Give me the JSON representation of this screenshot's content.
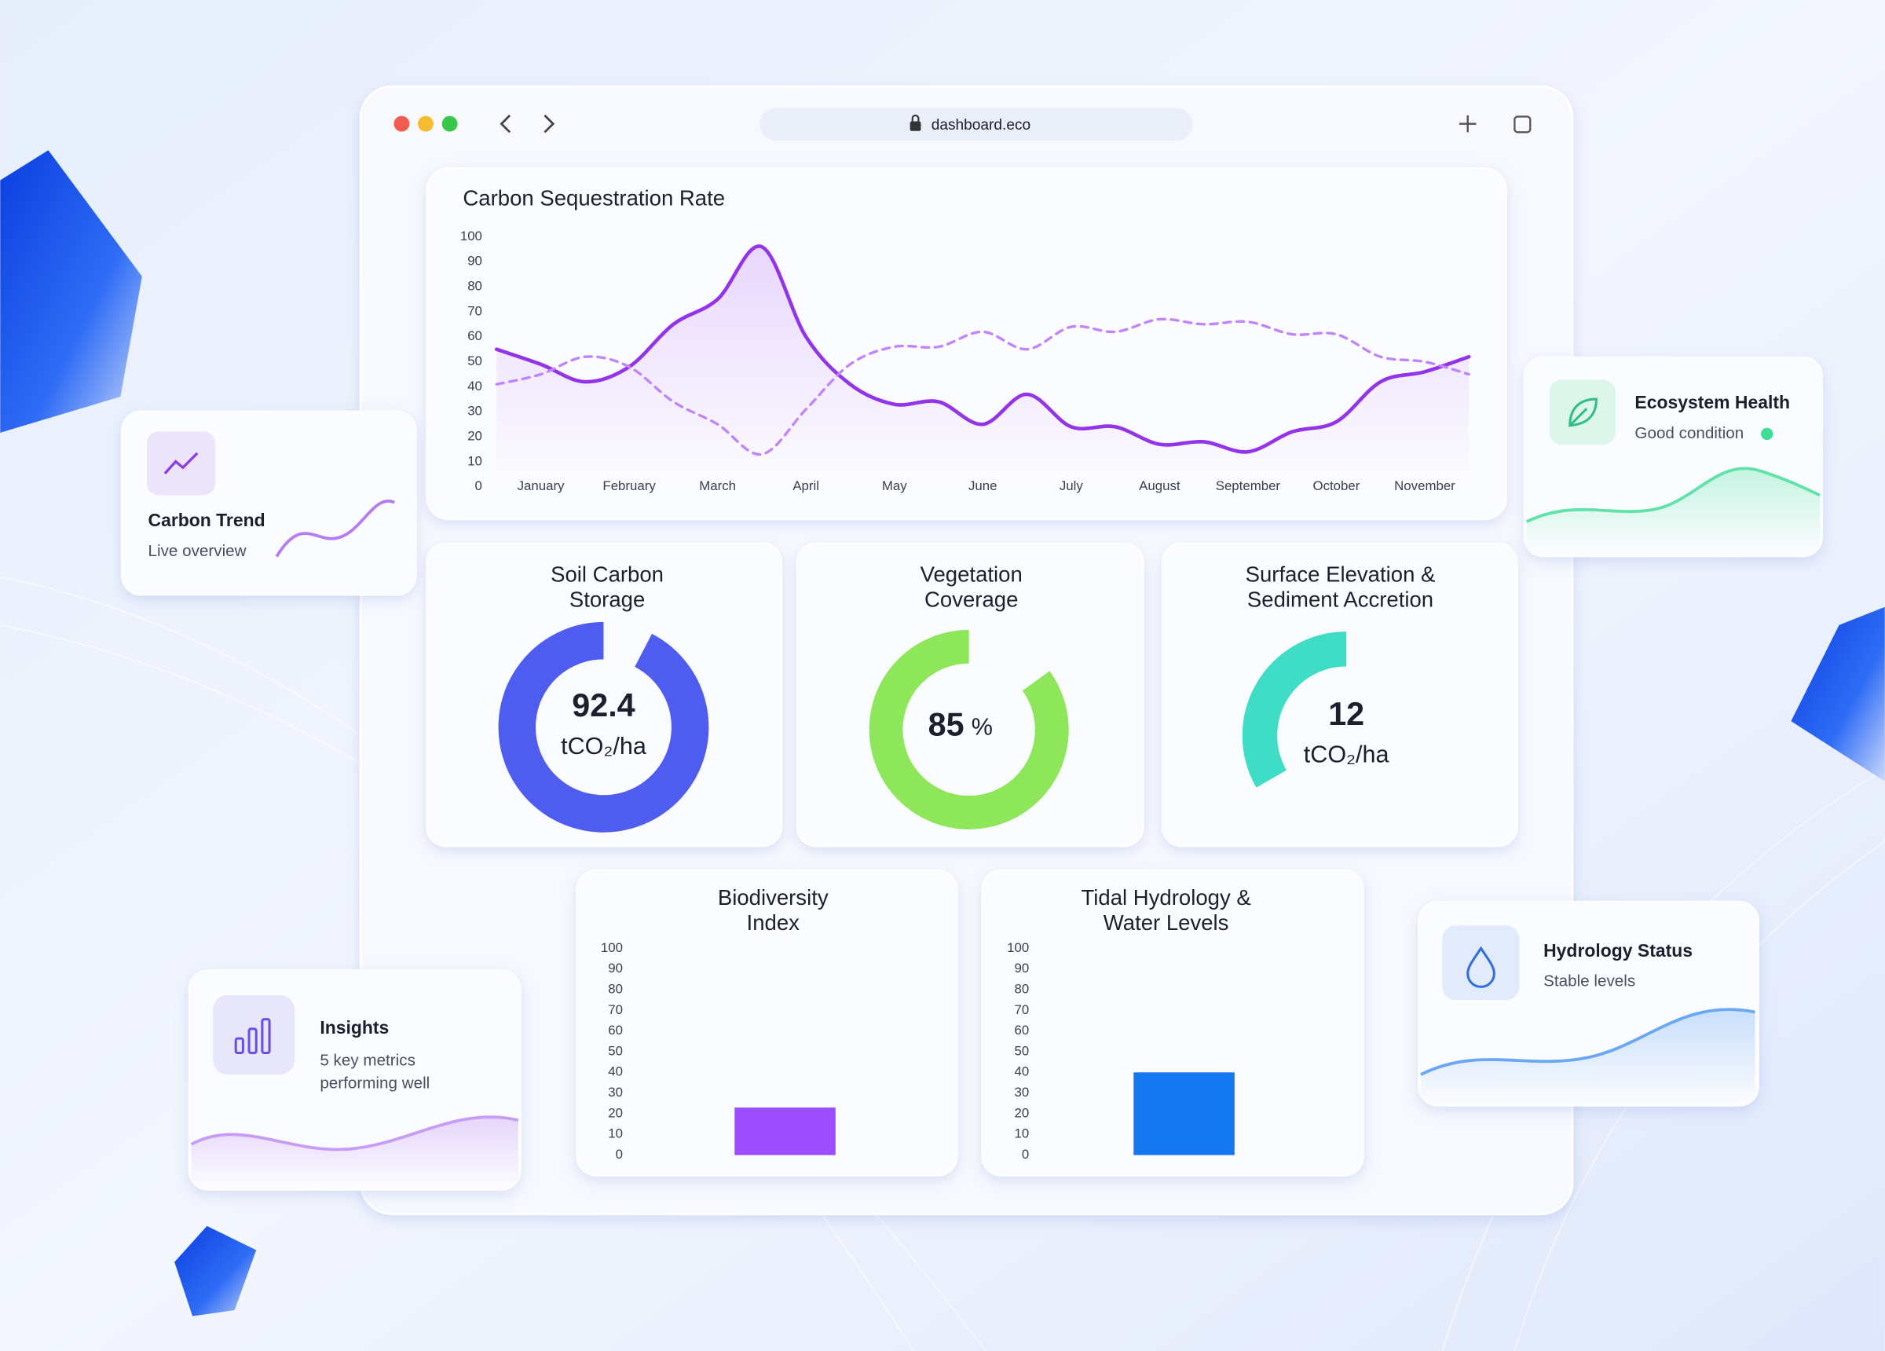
{
  "browser": {
    "url": "dashboard.eco"
  },
  "cards": {
    "carbon_trend": {
      "title": "Carbon Trend",
      "subtitle": "Live overview"
    },
    "ecosystem": {
      "title": "Ecosystem Health",
      "subtitle": "Good condition"
    },
    "insights": {
      "title": "Insights",
      "subtitle": [
        "5 key metrics",
        "performing well"
      ]
    },
    "hydrology": {
      "title": "Hydrology Status",
      "subtitle": "Stable levels"
    }
  },
  "chart_data": [
    {
      "type": "line",
      "title": "Carbon Sequestration Rate",
      "categories": [
        null,
        "January",
        null,
        "February",
        null,
        "March",
        null,
        "April",
        null,
        "May",
        null,
        "June",
        null,
        "July",
        null,
        "August",
        null,
        "September",
        null,
        "October",
        null,
        "November",
        null
      ],
      "series": [
        {
          "color": "#9333ea",
          "style": "solid",
          "fill": true,
          "values": [
            55,
            49,
            42,
            48,
            65,
            75,
            96,
            60,
            41,
            33,
            34,
            25,
            37,
            24,
            24,
            17,
            18,
            14,
            22,
            26,
            42,
            46,
            52
          ]
        },
        {
          "color": "#c084fc",
          "style": "dashed",
          "fill": false,
          "values": [
            41,
            45,
            52,
            48,
            34,
            25,
            13,
            31,
            49,
            56,
            56,
            62,
            55,
            64,
            62,
            67,
            65,
            66,
            61,
            61,
            52,
            50,
            45
          ]
        }
      ],
      "ylim": [
        0,
        100
      ],
      "yticks": [
        0,
        10,
        20,
        30,
        40,
        50,
        60,
        70,
        80,
        90,
        100
      ],
      "grid": false
    },
    {
      "type": "gauge",
      "title": [
        "Soil Carbon",
        "Storage"
      ],
      "values": [
        92.4
      ],
      "unit": "tCO₂/ha",
      "unit_position": "below",
      "color": "#4f5cf0",
      "ylim": [
        0,
        100
      ]
    },
    {
      "type": "gauge",
      "title": [
        "Vegetation",
        "Coverage"
      ],
      "values": [
        85
      ],
      "unit": "%",
      "unit_position": "inline",
      "color": "#8ee65a",
      "ylim": [
        0,
        100
      ]
    },
    {
      "type": "gauge",
      "title": [
        "Surface Elevation &",
        "Sediment Accretion"
      ],
      "values": [
        12
      ],
      "unit": "tCO₂/ha",
      "unit_position": "below",
      "color": "#3fdcc6",
      "ylim": [
        0,
        36
      ]
    },
    {
      "type": "bar",
      "title": [
        "Biodiversity",
        "Index"
      ],
      "categories": [
        null
      ],
      "values": [
        23
      ],
      "color": "#9b4dff",
      "ylim": [
        0,
        100
      ],
      "yticks": [
        0,
        10,
        20,
        30,
        40,
        50,
        60,
        70,
        80,
        90,
        100
      ],
      "grid": false
    },
    {
      "type": "bar",
      "title": [
        "Tidal Hydrology &",
        "Water Levels"
      ],
      "categories": [
        null
      ],
      "values": [
        40
      ],
      "color": "#1577f0",
      "ylim": [
        0,
        100
      ],
      "yticks": [
        0,
        10,
        20,
        30,
        40,
        50,
        60,
        70,
        80,
        90,
        100
      ],
      "grid": false
    }
  ]
}
